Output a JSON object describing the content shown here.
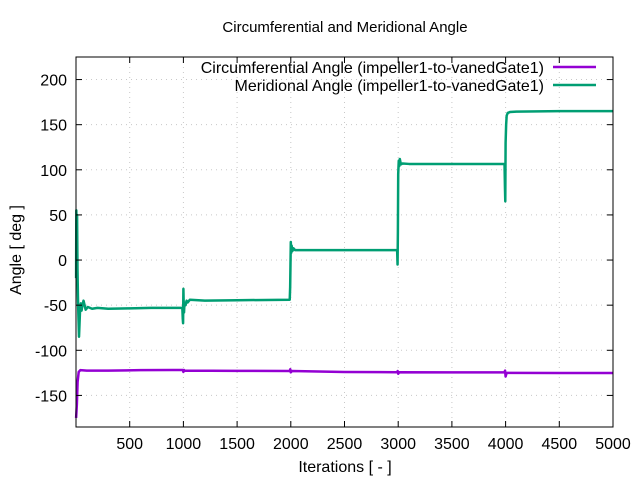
{
  "chart_data": {
    "type": "line",
    "title": "Circumferential and Meridional Angle",
    "xlabel": "Iterations [ - ]",
    "ylabel": "Angle [ deg ]",
    "xlim": [
      0,
      5000
    ],
    "ylim": [
      -185,
      225
    ],
    "xticks": [
      500,
      1000,
      1500,
      2000,
      2500,
      3000,
      3500,
      4000,
      4500,
      5000
    ],
    "yticks": [
      -150,
      -100,
      -50,
      0,
      50,
      100,
      150,
      200
    ],
    "grid": true,
    "legend_position": "top-right",
    "series": [
      {
        "name": "Circumferential Angle (impeller1-to-vanedGate1)",
        "color": "#9400d3",
        "points": [
          [
            1,
            -175
          ],
          [
            8,
            -160
          ],
          [
            15,
            -135
          ],
          [
            25,
            -124
          ],
          [
            40,
            -122
          ],
          [
            100,
            -122.5
          ],
          [
            300,
            -122.5
          ],
          [
            600,
            -122
          ],
          [
            900,
            -121.8
          ],
          [
            995,
            -121.8
          ],
          [
            1000,
            -124
          ],
          [
            1005,
            -121.8
          ],
          [
            1010,
            -122.5
          ],
          [
            1500,
            -122.8
          ],
          [
            1990,
            -123
          ],
          [
            1995,
            -121
          ],
          [
            2000,
            -124.5
          ],
          [
            2010,
            -123
          ],
          [
            2500,
            -124
          ],
          [
            2990,
            -124.3
          ],
          [
            2995,
            -123
          ],
          [
            3000,
            -126
          ],
          [
            3010,
            -124.3
          ],
          [
            3500,
            -124.5
          ],
          [
            3990,
            -124.5
          ],
          [
            3995,
            -122.5
          ],
          [
            4000,
            -129
          ],
          [
            4005,
            -127
          ],
          [
            4010,
            -125
          ],
          [
            4500,
            -125.2
          ],
          [
            5000,
            -125.2
          ]
        ]
      },
      {
        "name": "Meridional Angle (impeller1-to-vanedGate1)",
        "color": "#009e73",
        "points": [
          [
            1,
            -20
          ],
          [
            3,
            55
          ],
          [
            6,
            30
          ],
          [
            10,
            50
          ],
          [
            14,
            -10
          ],
          [
            18,
            -40
          ],
          [
            22,
            -60
          ],
          [
            28,
            -85
          ],
          [
            33,
            -70
          ],
          [
            38,
            -55
          ],
          [
            45,
            -48
          ],
          [
            52,
            -56
          ],
          [
            60,
            -50
          ],
          [
            70,
            -45
          ],
          [
            80,
            -50
          ],
          [
            90,
            -55
          ],
          [
            110,
            -52
          ],
          [
            150,
            -54
          ],
          [
            200,
            -53
          ],
          [
            300,
            -54
          ],
          [
            500,
            -53.5
          ],
          [
            700,
            -53
          ],
          [
            990,
            -53
          ],
          [
            994,
            -65
          ],
          [
            997,
            -70
          ],
          [
            1000,
            -32
          ],
          [
            1003,
            -50
          ],
          [
            1006,
            -58
          ],
          [
            1010,
            -47
          ],
          [
            1020,
            -50
          ],
          [
            1030,
            -45
          ],
          [
            1040,
            -47
          ],
          [
            1060,
            -44
          ],
          [
            1200,
            -45
          ],
          [
            1500,
            -44.5
          ],
          [
            1990,
            -44
          ],
          [
            1994,
            -30
          ],
          [
            1997,
            -5
          ],
          [
            2000,
            20
          ],
          [
            2004,
            8
          ],
          [
            2008,
            16
          ],
          [
            2015,
            10
          ],
          [
            2025,
            13
          ],
          [
            2040,
            11
          ],
          [
            2100,
            11
          ],
          [
            2500,
            11
          ],
          [
            2990,
            11
          ],
          [
            2994,
            -5
          ],
          [
            2997,
            30
          ],
          [
            3000,
            95
          ],
          [
            3005,
            110
          ],
          [
            3010,
            104
          ],
          [
            3015,
            112
          ],
          [
            3025,
            106
          ],
          [
            3040,
            107
          ],
          [
            3100,
            106.5
          ],
          [
            3500,
            106.5
          ],
          [
            3990,
            106.5
          ],
          [
            3994,
            80
          ],
          [
            3997,
            65
          ],
          [
            4000,
            130
          ],
          [
            4005,
            150
          ],
          [
            4010,
            160
          ],
          [
            4020,
            163
          ],
          [
            4040,
            164
          ],
          [
            4100,
            164.5
          ],
          [
            4500,
            165
          ],
          [
            5000,
            165
          ]
        ]
      }
    ]
  }
}
